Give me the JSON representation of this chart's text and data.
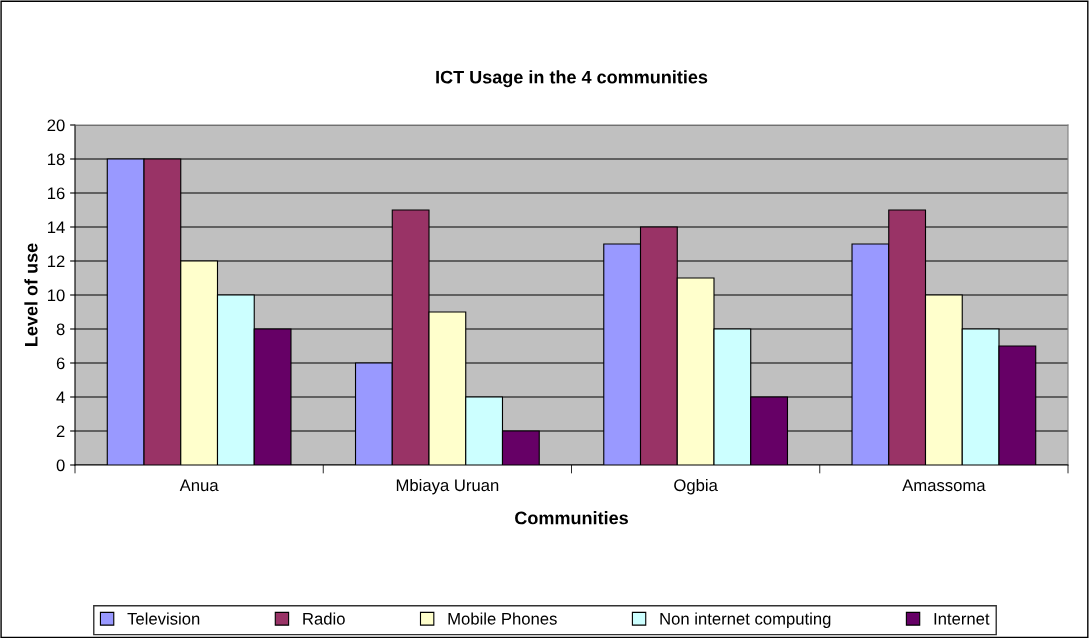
{
  "chart_data": {
    "type": "bar",
    "title": "ICT Usage in the 4 communities",
    "xlabel": "Communities",
    "ylabel": "Level of use",
    "categories": [
      "Anua",
      "Mbiaya Uruan",
      "Ogbia",
      "Amassoma"
    ],
    "series": [
      {
        "name": "Television",
        "color": "#9999ff",
        "values": [
          18,
          6,
          13,
          13
        ]
      },
      {
        "name": "Radio",
        "color": "#993366",
        "values": [
          18,
          15,
          14,
          15
        ]
      },
      {
        "name": "Mobile Phones",
        "color": "#ffffcc",
        "values": [
          12,
          9,
          11,
          10
        ]
      },
      {
        "name": "Non internet computing",
        "color": "#ccffff",
        "values": [
          10,
          4,
          8,
          8
        ]
      },
      {
        "name": "Internet",
        "color": "#660066",
        "values": [
          8,
          2,
          4,
          7
        ]
      }
    ],
    "ylim": [
      0,
      20
    ],
    "yticks": [
      0,
      2,
      4,
      6,
      8,
      10,
      12,
      14,
      16,
      18,
      20
    ],
    "grid": "y",
    "legend": "bottom"
  }
}
